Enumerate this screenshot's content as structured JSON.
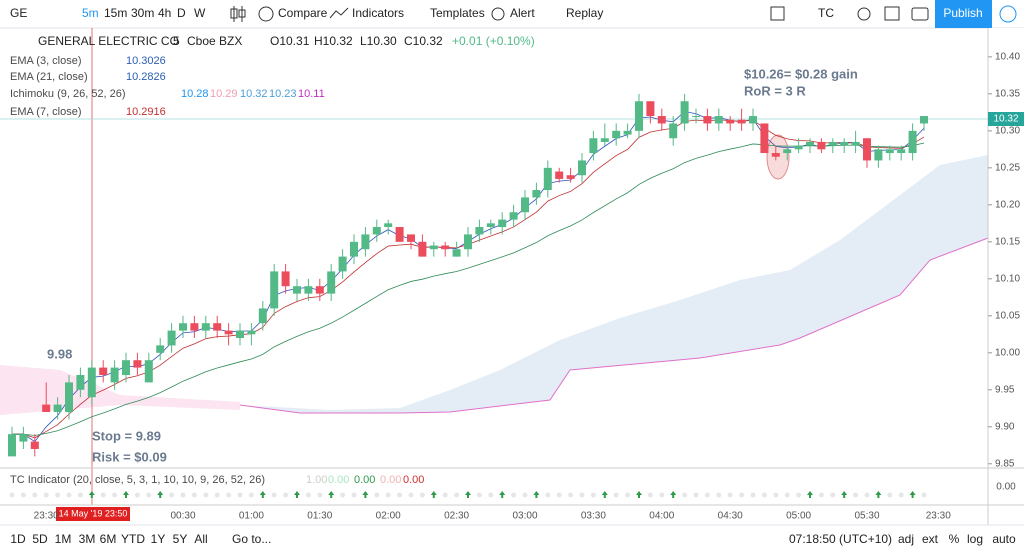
{
  "toolbar": {
    "symbol": "GE",
    "intervals": [
      "5m",
      "15m",
      "30m",
      "4h",
      "D",
      "W"
    ],
    "buttons": [
      "Compare",
      "Indicators",
      "Templates",
      "Alert",
      "Replay"
    ],
    "account": "TC",
    "publish": "Publish"
  },
  "legend": {
    "name": "GENERAL ELECTRIC CO",
    "interval": "5",
    "exchange": "Cboe BZX",
    "ohlc": [
      "O10.31",
      "H10.32",
      "L10.30",
      "C10.32"
    ],
    "change": "+0.01 (+0.10%)"
  },
  "studies": [
    {
      "name": "EMA (3, close)",
      "values": [
        "10.3026"
      ]
    },
    {
      "name": "EMA (21, close)",
      "values": [
        "10.2826"
      ]
    },
    {
      "name": "Ichimoku (9, 26, 52, 26)",
      "values": [
        "10.28",
        "10.29",
        "10.32",
        "10.23",
        "10.11"
      ]
    },
    {
      "name": "EMA (7, close)",
      "values": [
        "10.2916"
      ]
    }
  ],
  "annotations": {
    "gain": "$10.26= $0.28 gain",
    "ror": "RoR = 3 R",
    "entry": "9.98",
    "stop": "Stop = 9.89",
    "risk": "Risk = $0.09"
  },
  "chart_data": {
    "type": "candlestick",
    "ylim": [
      9.847,
      10.439
    ],
    "yticks": [
      {
        "value": 10.4,
        "label": "10.40"
      },
      {
        "value": 10.35,
        "label": "10.35"
      },
      {
        "value": 10.3,
        "label": "10.30"
      },
      {
        "value": 10.25,
        "label": "10.25"
      },
      {
        "value": 10.2,
        "label": "10.20"
      },
      {
        "value": 10.15,
        "label": "10.15"
      },
      {
        "value": 10.1,
        "label": "10.10"
      },
      {
        "value": 10.05,
        "label": "10.05"
      },
      {
        "value": 10,
        "label": "10.00"
      },
      {
        "value": 9.95,
        "label": "9.95"
      },
      {
        "value": 9.9,
        "label": "9.90"
      },
      {
        "value": 9.85,
        "label": "9.85"
      }
    ],
    "last_price": {
      "value": 10.32,
      "label": "10.32"
    },
    "xticks": [
      "23:30",
      "00:30",
      "01:00",
      "01:30",
      "02:00",
      "02:30",
      "03:00",
      "03:30",
      "04:00",
      "04:30",
      "05:00",
      "05:30",
      "23:30"
    ],
    "cursor_date": "14 May '19   23:50",
    "up_color": "#53b987",
    "down_color": "#eb4d5c",
    "candles": [
      [
        9.86,
        9.9,
        9.86,
        9.89
      ],
      [
        9.88,
        9.9,
        9.87,
        9.89
      ],
      [
        9.88,
        9.89,
        9.86,
        9.87
      ],
      [
        9.93,
        9.96,
        9.92,
        9.92
      ],
      [
        9.92,
        9.94,
        9.91,
        9.93
      ],
      [
        9.92,
        9.97,
        9.91,
        9.96
      ],
      [
        9.95,
        9.98,
        9.94,
        9.97
      ],
      [
        9.94,
        9.99,
        9.93,
        9.98
      ],
      [
        9.98,
        9.99,
        9.96,
        9.97
      ],
      [
        9.96,
        9.99,
        9.95,
        9.98
      ],
      [
        9.97,
        10,
        9.96,
        9.99
      ],
      [
        9.99,
        10,
        9.97,
        9.98
      ],
      [
        9.96,
        10,
        9.96,
        9.99
      ],
      [
        10,
        10.02,
        9.99,
        10.01
      ],
      [
        10.01,
        10.04,
        10,
        10.03
      ],
      [
        10.03,
        10.05,
        10.02,
        10.04
      ],
      [
        10.04,
        10.05,
        10.02,
        10.03
      ],
      [
        10.03,
        10.05,
        10.02,
        10.04
      ],
      [
        10.04,
        10.05,
        10.02,
        10.03
      ],
      [
        10.03,
        10.04,
        10.01,
        10.025
      ],
      [
        10.02,
        10.04,
        10.01,
        10.03
      ],
      [
        10.025,
        10.04,
        10.01,
        10.03
      ],
      [
        10.04,
        10.07,
        10.03,
        10.06
      ],
      [
        10.06,
        10.12,
        10.05,
        10.11
      ],
      [
        10.11,
        10.12,
        10.08,
        10.09
      ],
      [
        10.08,
        10.1,
        10.07,
        10.09
      ],
      [
        10.08,
        10.1,
        10.07,
        10.09
      ],
      [
        10.09,
        10.1,
        10.07,
        10.08
      ],
      [
        10.08,
        10.12,
        10.07,
        10.11
      ],
      [
        10.11,
        10.14,
        10.1,
        10.13
      ],
      [
        10.13,
        10.16,
        10.12,
        10.15
      ],
      [
        10.14,
        10.17,
        10.13,
        10.16
      ],
      [
        10.16,
        10.18,
        10.15,
        10.17
      ],
      [
        10.17,
        10.18,
        10.16,
        10.175
      ],
      [
        10.17,
        10.17,
        10.15,
        10.15
      ],
      [
        10.16,
        10.16,
        10.14,
        10.15
      ],
      [
        10.15,
        10.16,
        10.13,
        10.13
      ],
      [
        10.14,
        10.15,
        10.13,
        10.145
      ],
      [
        10.145,
        10.15,
        10.13,
        10.14
      ],
      [
        10.13,
        10.15,
        10.13,
        10.14
      ],
      [
        10.14,
        10.17,
        10.13,
        10.16
      ],
      [
        10.16,
        10.18,
        10.15,
        10.17
      ],
      [
        10.17,
        10.18,
        10.16,
        10.175
      ],
      [
        10.17,
        10.19,
        10.16,
        10.18
      ],
      [
        10.18,
        10.2,
        10.17,
        10.19
      ],
      [
        10.19,
        10.22,
        10.18,
        10.21
      ],
      [
        10.21,
        10.23,
        10.2,
        10.22
      ],
      [
        10.22,
        10.26,
        10.21,
        10.25
      ],
      [
        10.245,
        10.25,
        10.23,
        10.235
      ],
      [
        10.24,
        10.25,
        10.23,
        10.235
      ],
      [
        10.24,
        10.27,
        10.23,
        10.26
      ],
      [
        10.27,
        10.3,
        10.26,
        10.29
      ],
      [
        10.285,
        10.31,
        10.28,
        10.29
      ],
      [
        10.29,
        10.31,
        10.28,
        10.3
      ],
      [
        10.295,
        10.31,
        10.29,
        10.3
      ],
      [
        10.3,
        10.35,
        10.29,
        10.34
      ],
      [
        10.34,
        10.34,
        10.31,
        10.32
      ],
      [
        10.32,
        10.33,
        10.3,
        10.31
      ],
      [
        10.29,
        10.32,
        10.28,
        10.31
      ],
      [
        10.31,
        10.35,
        10.3,
        10.34
      ],
      [
        10.32,
        10.33,
        10.31,
        10.32
      ],
      [
        10.32,
        10.33,
        10.3,
        10.31
      ],
      [
        10.31,
        10.33,
        10.3,
        10.32
      ],
      [
        10.315,
        10.32,
        10.3,
        10.31
      ],
      [
        10.315,
        10.33,
        10.3,
        10.31
      ],
      [
        10.31,
        10.33,
        10.3,
        10.32
      ],
      [
        10.31,
        10.31,
        10.27,
        10.27
      ],
      [
        10.27,
        10.28,
        10.26,
        10.265
      ],
      [
        10.27,
        10.28,
        10.26,
        10.275
      ],
      [
        10.275,
        10.29,
        10.27,
        10.28
      ],
      [
        10.28,
        10.29,
        10.27,
        10.285
      ],
      [
        10.285,
        10.29,
        10.27,
        10.275
      ],
      [
        10.28,
        10.29,
        10.27,
        10.285
      ],
      [
        10.28,
        10.29,
        10.27,
        10.285
      ],
      [
        10.28,
        10.3,
        10.27,
        10.285
      ],
      [
        10.29,
        10.29,
        10.25,
        10.26
      ],
      [
        10.26,
        10.28,
        10.25,
        10.275
      ],
      [
        10.27,
        10.28,
        10.26,
        10.275
      ],
      [
        10.27,
        10.28,
        10.26,
        10.275
      ],
      [
        10.27,
        10.31,
        10.26,
        10.3
      ],
      [
        10.31,
        10.32,
        10.3,
        10.32
      ]
    ]
  },
  "tc_indicator": {
    "name": "TC Indicator (20, close, 5, 3, 1, 10, 10, 9, 26, 52, 26)",
    "values": [
      "1.00",
      "0.00",
      "0.00",
      "0.00",
      "0.00"
    ],
    "axis": "0.00"
  },
  "bottom": {
    "ranges": [
      "1D",
      "5D",
      "1M",
      "3M",
      "6M",
      "YTD",
      "1Y",
      "5Y",
      "All"
    ],
    "goto": "Go to...",
    "time": "07:18:50 (UTC+10)",
    "options": [
      "adj",
      "ext",
      "%",
      "log",
      "auto"
    ]
  }
}
